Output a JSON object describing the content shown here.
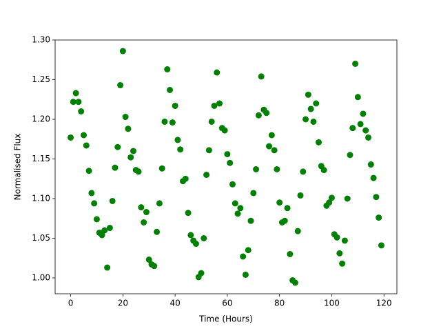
{
  "chart_data": {
    "type": "scatter",
    "xlabel": "Time (Hours)",
    "ylabel": "Normalised Flux",
    "color": "#008000",
    "xlim": [
      -5.95,
      124.95
    ],
    "ylim": [
      0.98,
      1.3
    ],
    "xticks": [
      0,
      20,
      40,
      60,
      80,
      100,
      120
    ],
    "yticks": [
      {
        "value": 1.0,
        "label": "1.00"
      },
      1.05,
      {
        "value": 1.1,
        "label": "1.10"
      },
      1.15,
      {
        "value": 1.2,
        "label": "1.20"
      },
      1.25,
      {
        "value": 1.3,
        "label": "1.30"
      }
    ],
    "x": [
      0,
      1,
      2,
      3,
      4,
      5,
      6,
      7,
      8,
      9,
      10,
      11,
      12,
      13,
      14,
      15,
      16,
      17,
      18,
      19,
      20,
      21,
      22,
      23,
      24,
      25,
      26,
      27,
      28,
      29,
      30,
      31,
      32,
      33,
      34,
      35,
      36,
      37,
      38,
      39,
      40,
      41,
      42,
      43,
      44,
      45,
      46,
      47,
      48,
      49,
      50,
      51,
      52,
      53,
      54,
      55,
      56,
      57,
      58,
      59,
      60,
      61,
      62,
      63,
      64,
      65,
      66,
      67,
      68,
      69,
      70,
      71,
      72,
      73,
      74,
      75,
      76,
      77,
      78,
      79,
      80,
      81,
      82,
      83,
      84,
      85,
      86,
      87,
      88,
      89,
      90,
      91,
      92,
      93,
      94,
      95,
      96,
      97,
      98,
      99,
      100,
      101,
      102,
      103,
      104,
      105,
      106,
      107,
      108,
      109,
      110,
      111,
      112,
      113,
      114,
      115,
      116,
      117,
      118,
      119
    ],
    "values": [
      1.177,
      1.222,
      1.233,
      1.222,
      1.21,
      1.18,
      1.167,
      1.135,
      1.107,
      1.094,
      1.074,
      1.057,
      1.054,
      1.06,
      1.013,
      1.063,
      1.097,
      1.139,
      1.165,
      1.243,
      1.286,
      1.203,
      1.188,
      1.152,
      1.16,
      1.136,
      1.134,
      1.089,
      1.07,
      1.083,
      1.023,
      1.017,
      1.015,
      1.058,
      1.094,
      1.138,
      1.197,
      1.263,
      1.237,
      1.196,
      1.217,
      1.174,
      1.162,
      1.122,
      1.125,
      1.082,
      1.054,
      1.047,
      1.043,
      1.001,
      1.006,
      1.05,
      1.13,
      1.161,
      1.197,
      1.217,
      1.259,
      1.22,
      1.189,
      1.186,
      1.156,
      1.145,
      1.118,
      1.094,
      1.081,
      1.088,
      1.027,
      1.004,
      1.035,
      1.072,
      1.107,
      1.137,
      1.205,
      1.254,
      1.212,
      1.208,
      1.166,
      1.18,
      1.161,
      1.137,
      1.095,
      1.07,
      1.072,
      1.088,
      1.03,
      0.997,
      0.994,
      1.059,
      1.104,
      1.134,
      1.2,
      1.231,
      1.213,
      1.197,
      1.22,
      1.171,
      1.141,
      1.136,
      1.091,
      1.095,
      1.101,
      1.055,
      1.051,
      1.031,
      1.018,
      1.047,
      1.1,
      1.155,
      1.189,
      1.27,
      1.228,
      1.194,
      1.207,
      1.186,
      1.177,
      1.143,
      1.126,
      1.102,
      1.076,
      1.041
    ]
  }
}
